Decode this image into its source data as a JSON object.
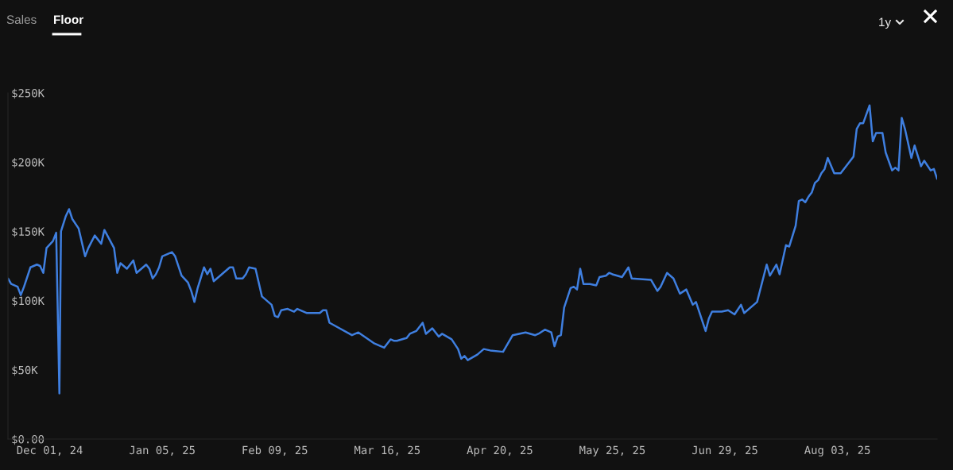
{
  "chart_data": {
    "type": "line",
    "annotations": [
      "Sales",
      "Floor",
      "1y"
    ],
    "x": [
      "2024-11-18",
      "2024-11-19",
      "2024-11-21",
      "2024-11-22",
      "2024-11-23",
      "2024-11-25",
      "2024-11-27",
      "2024-11-28",
      "2024-11-29",
      "2024-11-30",
      "2024-12-02",
      "2024-12-03",
      "2024-12-04",
      "2024-12-04T12:00",
      "2024-12-06",
      "2024-12-07",
      "2024-12-08",
      "2024-12-10",
      "2024-12-12",
      "2024-12-13",
      "2024-12-15",
      "2024-12-17",
      "2024-12-18",
      "2024-12-21",
      "2024-12-22",
      "2024-12-23",
      "2024-12-25",
      "2024-12-27",
      "2024-12-28",
      "2024-12-31",
      "2025-01-01",
      "2025-01-02",
      "2025-01-03",
      "2025-01-04",
      "2025-01-05",
      "2025-01-08",
      "2025-01-09",
      "2025-01-11",
      "2025-01-13",
      "2025-01-14",
      "2025-01-15",
      "2025-01-16",
      "2025-01-18",
      "2025-01-19",
      "2025-01-20",
      "2025-01-21",
      "2025-01-23",
      "2025-01-26",
      "2025-01-27",
      "2025-01-28",
      "2025-01-30",
      "2025-01-31",
      "2025-02-01",
      "2025-02-03",
      "2025-02-05",
      "2025-02-08",
      "2025-02-09",
      "2025-02-10",
      "2025-02-11",
      "2025-02-13",
      "2025-02-15",
      "2025-02-16",
      "2025-02-19",
      "2025-02-23",
      "2025-02-24",
      "2025-02-25",
      "2025-02-26",
      "2025-03-05",
      "2025-03-07",
      "2025-03-12",
      "2025-03-13",
      "2025-03-15",
      "2025-03-17",
      "2025-03-18",
      "2025-03-19",
      "2025-03-22",
      "2025-03-23",
      "2025-03-25",
      "2025-03-27",
      "2025-03-28",
      "2025-03-30",
      "2025-04-01",
      "2025-04-02",
      "2025-04-05",
      "2025-04-07",
      "2025-04-08",
      "2025-04-09",
      "2025-04-10",
      "2025-04-13",
      "2025-04-15",
      "2025-04-17",
      "2025-04-21",
      "2025-04-24",
      "2025-04-28",
      "2025-05-01",
      "2025-05-02",
      "2025-05-04",
      "2025-05-06",
      "2025-05-07",
      "2025-05-08",
      "2025-05-09",
      "2025-05-10",
      "2025-05-12",
      "2025-05-13",
      "2025-05-14",
      "2025-05-15",
      "2025-05-16",
      "2025-05-18",
      "2025-05-20",
      "2025-05-21",
      "2025-05-23",
      "2025-05-24",
      "2025-05-25",
      "2025-05-28",
      "2025-05-30",
      "2025-05-31",
      "2025-06-06",
      "2025-06-08",
      "2025-06-09",
      "2025-06-11",
      "2025-06-13",
      "2025-06-15",
      "2025-06-17",
      "2025-06-19",
      "2025-06-20",
      "2025-06-23",
      "2025-06-24",
      "2025-06-25",
      "2025-06-28",
      "2025-06-30",
      "2025-07-02",
      "2025-07-04",
      "2025-07-05",
      "2025-07-09",
      "2025-07-12",
      "2025-07-13",
      "2025-07-15",
      "2025-07-16",
      "2025-07-18",
      "2025-07-19",
      "2025-07-21",
      "2025-07-22",
      "2025-07-23",
      "2025-07-24",
      "2025-07-25",
      "2025-07-26",
      "2025-07-27",
      "2025-07-28",
      "2025-07-29",
      "2025-07-30",
      "2025-07-31",
      "2025-08-02",
      "2025-08-04",
      "2025-08-08",
      "2025-08-09",
      "2025-08-10",
      "2025-08-11",
      "2025-08-13",
      "2025-08-14",
      "2025-08-15",
      "2025-08-17",
      "2025-08-18",
      "2025-08-20",
      "2025-08-21",
      "2025-08-22",
      "2025-08-23",
      "2025-08-24",
      "2025-08-26",
      "2025-08-27",
      "2025-08-29",
      "2025-08-30",
      "2025-09-01",
      "2025-09-02",
      "2025-09-03"
    ],
    "series": [
      {
        "color": "#3f7fe0",
        "values": [
          116,
          112,
          110,
          104,
          110,
          124,
          126,
          125,
          120,
          138,
          143,
          149,
          33,
          150,
          161,
          166,
          159,
          152,
          132,
          138,
          147,
          141,
          151,
          138,
          120,
          127,
          123,
          129,
          120,
          126,
          123,
          116,
          119,
          124,
          132,
          135,
          132,
          118,
          113,
          107,
          99,
          109,
          124,
          119,
          123,
          114,
          118,
          124,
          124,
          116,
          116,
          119,
          124,
          123,
          103,
          97,
          89,
          88,
          93,
          94,
          92,
          94,
          91,
          91,
          93,
          93,
          84,
          75,
          77,
          69,
          68,
          66,
          72,
          71,
          71,
          73,
          76,
          78,
          84,
          76,
          80,
          74,
          76,
          72,
          65,
          58,
          60,
          57,
          61,
          65,
          64,
          63,
          75,
          77,
          75,
          76,
          79,
          77,
          67,
          74,
          75,
          95,
          109,
          110,
          108,
          123,
          112,
          112,
          111,
          117,
          118,
          120,
          119,
          117,
          124,
          116,
          115,
          107,
          110,
          120,
          116,
          105,
          108,
          97,
          99,
          78,
          87,
          92,
          92,
          93,
          90,
          97,
          91,
          99,
          126,
          118,
          126,
          119,
          140,
          139,
          154,
          172,
          173,
          171,
          175,
          178,
          185,
          187,
          192,
          195,
          203,
          192,
          192,
          204,
          224,
          228,
          228,
          241,
          215,
          221,
          221,
          207,
          194,
          196,
          194,
          232,
          224,
          203,
          212,
          197,
          201,
          194,
          195,
          188
        ]
      }
    ],
    "xlim": [
      "2024-11-18",
      "2025-09-03"
    ],
    "xticks": [
      {
        "value": "2024-12-01",
        "label": "Dec 01, 24"
      },
      {
        "value": "2025-01-05",
        "label": "Jan 05, 25"
      },
      {
        "value": "2025-02-09",
        "label": "Feb 09, 25"
      },
      {
        "value": "2025-03-16",
        "label": "Mar 16, 25"
      },
      {
        "value": "2025-04-20",
        "label": "Apr 20, 25"
      },
      {
        "value": "2025-05-25",
        "label": "May 25, 25"
      },
      {
        "value": "2025-06-29",
        "label": "Jun 29, 25"
      },
      {
        "value": "2025-08-03",
        "label": "Aug 03, 25"
      }
    ],
    "ylim": [
      0,
      250
    ],
    "yticks": [
      {
        "value": 0,
        "label": "$0.00"
      },
      {
        "value": 50,
        "label": "$50K"
      },
      {
        "value": 100,
        "label": "$100K"
      },
      {
        "value": 150,
        "label": "$150K"
      },
      {
        "value": 200,
        "label": "$200K"
      },
      {
        "value": 250,
        "label": "$250K"
      }
    ],
    "grid": false,
    "legend": false
  }
}
